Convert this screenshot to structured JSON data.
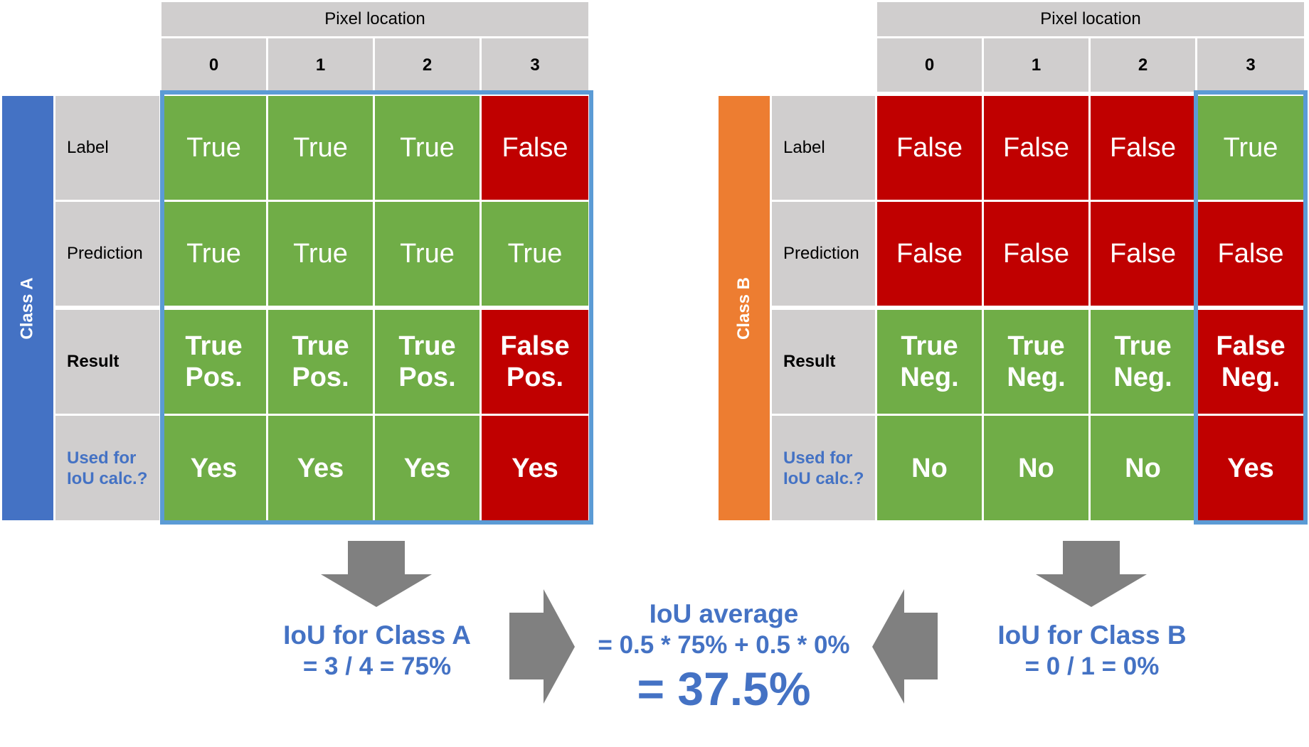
{
  "colors": {
    "green": "#70ad47",
    "red": "#c00000",
    "gray": "#d0cece",
    "blue_highlight": "#5b9bd5",
    "class_a": "#4472c4",
    "class_b": "#ed7d31",
    "arrow": "#808080",
    "result_text": "#4472c4"
  },
  "header_label": "Pixel location",
  "indices": [
    "0",
    "1",
    "2",
    "3"
  ],
  "row_labels": {
    "label": "Label",
    "prediction": "Prediction",
    "result": "Result",
    "used_line1": "Used for",
    "used_line2": "IoU calc.?"
  },
  "class_a": {
    "name": "Class A",
    "label": [
      "True",
      "True",
      "True",
      "False"
    ],
    "prediction": [
      "True",
      "True",
      "True",
      "True"
    ],
    "result_line1": [
      "True",
      "True",
      "True",
      "False"
    ],
    "result_line2": [
      "Pos.",
      "Pos.",
      "Pos.",
      "Pos."
    ],
    "used": [
      "Yes",
      "Yes",
      "Yes",
      "Yes"
    ]
  },
  "class_b": {
    "name": "Class B",
    "label": [
      "False",
      "False",
      "False",
      "True"
    ],
    "prediction": [
      "False",
      "False",
      "False",
      "False"
    ],
    "result_line1": [
      "True",
      "True",
      "True",
      "False"
    ],
    "result_line2": [
      "Neg.",
      "Neg.",
      "Neg.",
      "Neg."
    ],
    "used": [
      "No",
      "No",
      "No",
      "Yes"
    ]
  },
  "iou_a": {
    "title": "IoU for Class A",
    "formula": "= 3 / 4 = 75%"
  },
  "iou_b": {
    "title": "IoU for Class B",
    "formula": "= 0 / 1 = 0%"
  },
  "iou_avg": {
    "title": "IoU average",
    "formula": "= 0.5 * 75% + 0.5 * 0%",
    "result": "= 37.5%"
  }
}
